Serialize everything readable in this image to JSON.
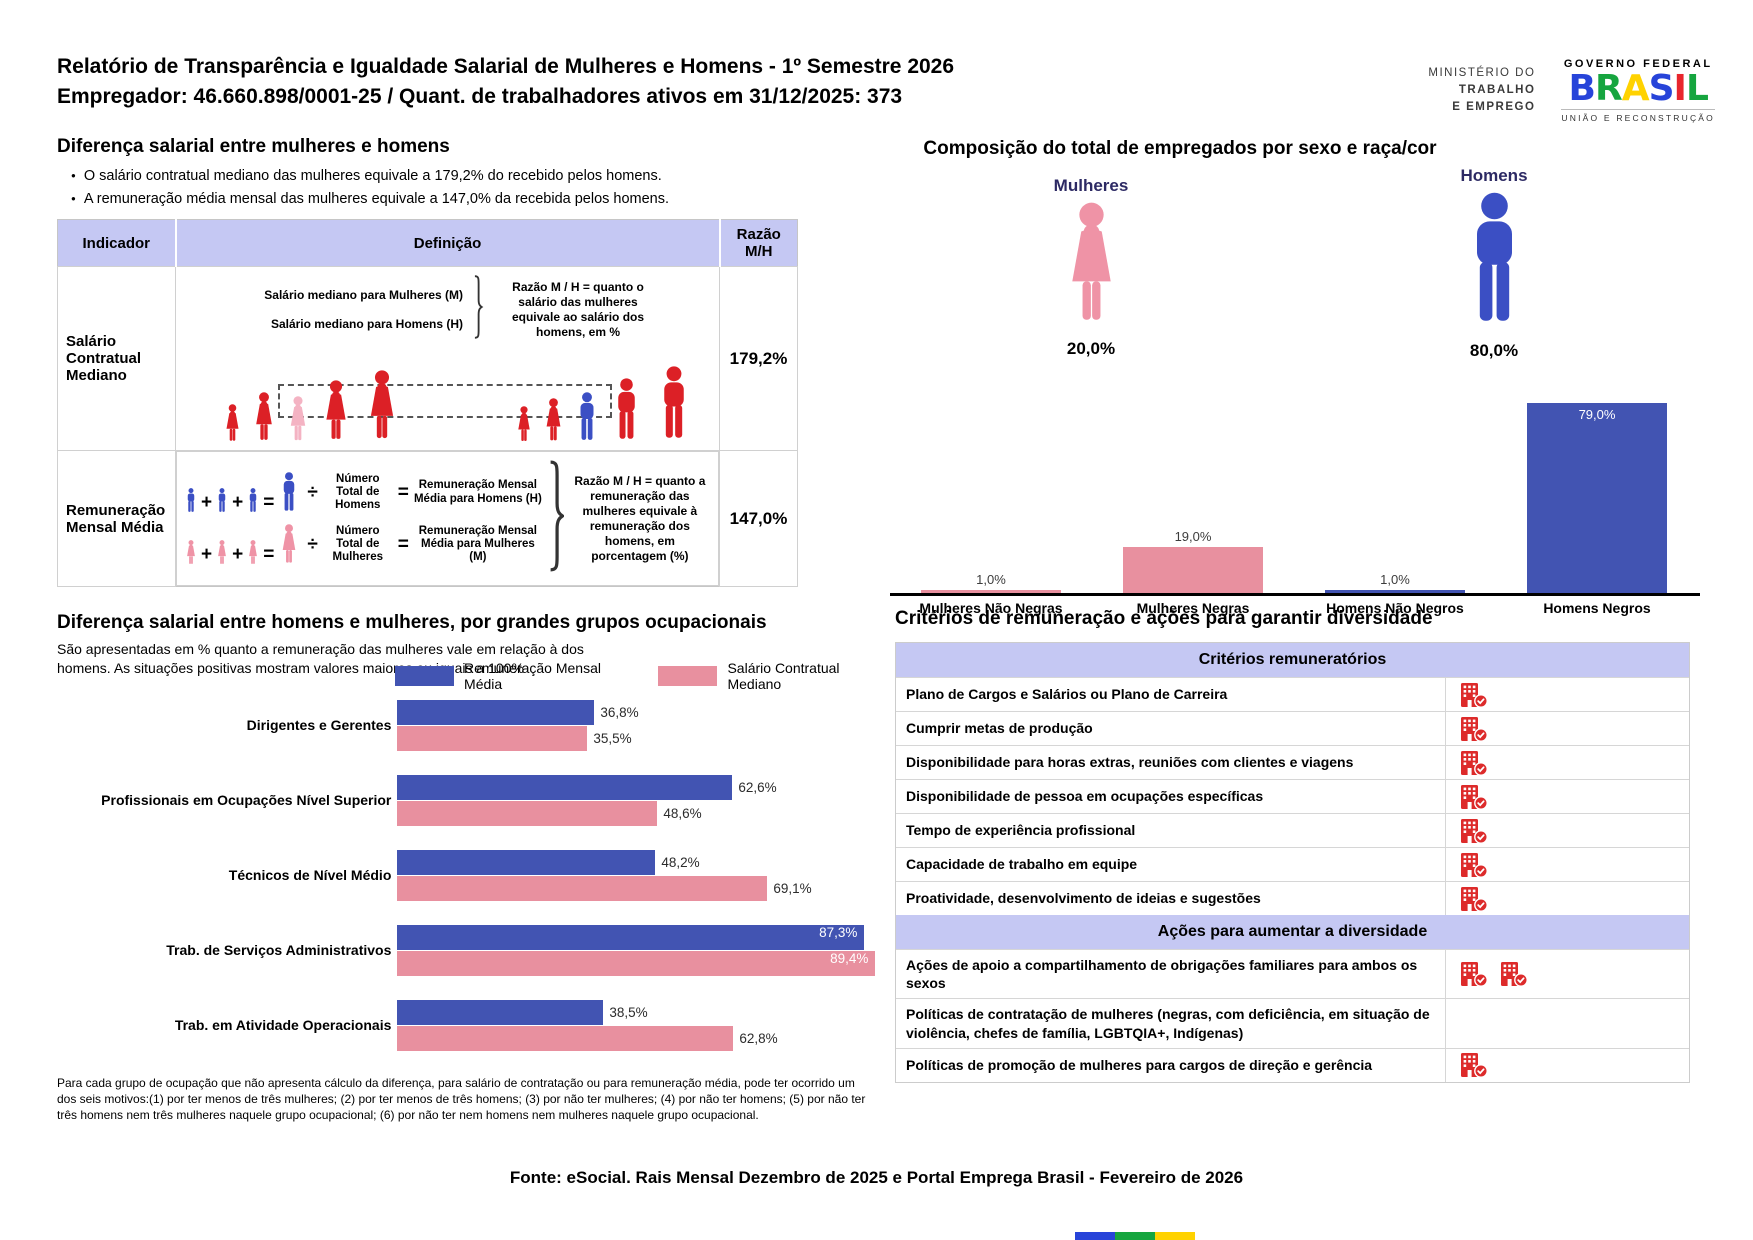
{
  "page": {
    "title_line1": "Relatório de Transparência e Igualdade Salarial de Mulheres e Homens - 1º Semestre 2026",
    "title_line2": "Empregador: 46.660.898/0001-25 / Quant. de trabalhadores ativos em 31/12/2025: 373",
    "footer": "Fonte: eSocial. Rais Mensal Dezembro de 2025 e Portal Emprega Brasil - Fevereiro de 2026"
  },
  "logos": {
    "ministry_line1": "MINISTÉRIO DO",
    "ministry_line2": "TRABALHO",
    "ministry_line3": "E EMPREGO",
    "gov_federal": "GOVERNO FEDERAL",
    "brasil": "BRASIL",
    "uniao": "UNIÃO E RECONSTRUÇÃO"
  },
  "salary_gap": {
    "title": "Diferença salarial entre mulheres e homens",
    "bullet1": "O salário contratual mediano das mulheres equivale a 179,2% do recebido pelos homens.",
    "bullet2": "A remuneração média mensal das mulheres equivale a 147,0% da recebida pelos homens.",
    "col_indicator": "Indicador",
    "col_definition": "Definição",
    "col_ratio": "Razão M/H",
    "row1": {
      "indicator": "Salário Contratual Mediano",
      "label_women": "Salário mediano para Mulheres (M)",
      "label_men": "Salário mediano para Homens (H)",
      "ratio_note": "Razão M / H = quanto o salário das mulheres equivale ao salário dos homens, em %",
      "ratio": "179,2%"
    },
    "row2": {
      "indicator": "Remuneração Mensal Média",
      "men_count_label": "Número Total de Homens",
      "men_result_label": "Remuneração Mensal Média para Homens (H)",
      "women_count_label": "Número Total de Mulheres",
      "women_result_label": "Remuneração Mensal Média para Mulheres (M)",
      "ratio_note": "Razão M / H = quanto a remuneração das mulheres equivale à remuneração dos homens, em porcentagem (%)",
      "ratio": "147,0%"
    },
    "operators": {
      "plus": "+",
      "equals": "=",
      "divide": "÷"
    }
  },
  "composition": {
    "title": "Composição do total de empregados por sexo e raça/cor",
    "women_label": "Mulheres",
    "women_pct": "20,0%",
    "men_label": "Homens",
    "men_pct": "80,0%"
  },
  "occupational": {
    "title": "Diferença salarial entre homens e mulheres, por grandes grupos ocupacionais",
    "subtitle": "São apresentadas em % quanto a remuneração das mulheres vale em relação à dos homens. As situações positivas mostram valores maiores ou iguais a 100%",
    "footnote": "Para cada grupo de ocupação que não apresenta cálculo da diferença, para salário de contratação ou para remuneração média, pode ter ocorrido um dos seis motivos:(1) por ter menos de três mulheres; (2) por ter menos de três homens; (3) por não ter mulheres; (4) por não ter homens; (5) por não ter três homens nem três mulheres naquele grupo ocupacional; (6) por não ter nem homens nem mulheres naquele grupo ocupacional."
  },
  "criteria": {
    "title": "Critérios de remuneração e ações para garantir diversidade",
    "sections": [
      {
        "header": "Critérios remuneratórios",
        "rows": [
          {
            "label": "Plano de Cargos e Salários ou Plano de Carreira",
            "checks": 1
          },
          {
            "label": "Cumprir metas de produção",
            "checks": 1
          },
          {
            "label": "Disponibilidade para horas extras, reuniões com clientes e viagens",
            "checks": 1
          },
          {
            "label": "Disponibilidade de pessoa em ocupações específicas",
            "checks": 1
          },
          {
            "label": "Tempo de experiência profissional",
            "checks": 1
          },
          {
            "label": "Capacidade de trabalho em equipe",
            "checks": 1
          },
          {
            "label": "Proatividade, desenvolvimento de ideias e sugestões",
            "checks": 1
          }
        ]
      },
      {
        "header": "Ações para aumentar a diversidade",
        "rows": [
          {
            "label": "Ações de apoio a compartilhamento de obrigações familiares para ambos os sexos",
            "checks": 2
          },
          {
            "label": "Políticas de contratação de mulheres (negras, com deficiência, em situação de violência, chefes de família, LGBTQIA+, Indígenas)",
            "checks": 0
          },
          {
            "label": "Políticas de promoção de mulheres para cargos de direção e gerência",
            "checks": 1
          }
        ]
      }
    ]
  },
  "chart_data": [
    {
      "type": "bar",
      "title": "Composição do total de empregados por sexo e raça/cor",
      "categories": [
        "Mulheres Não Negras",
        "Mulheres Negras",
        "Homens Não Negros",
        "Homens Negros"
      ],
      "values": [
        1.0,
        19.0,
        1.0,
        79.0
      ],
      "labels": [
        "1,0%",
        "19,0%",
        "1,0%",
        "79,0%"
      ],
      "colors": [
        "#e8909f",
        "#e8909f",
        "#4254b2",
        "#4254b2"
      ],
      "group_summary": {
        "Mulheres": "20,0%",
        "Homens": "80,0%"
      },
      "ylim": [
        0,
        100
      ],
      "grid": false,
      "legend_position": "none"
    },
    {
      "type": "bar",
      "orientation": "horizontal",
      "title": "Diferença salarial entre homens e mulheres, por grandes grupos ocupacionais",
      "categories": [
        "Dirigentes e Gerentes",
        "Profissionais em Ocupações Nível Superior",
        "Técnicos de Nível Médio",
        "Trab. de Serviços Administrativos",
        "Trab. em Atividade Operacionais"
      ],
      "series": [
        {
          "name": "Remuneração Mensal Média",
          "color": "#4254b2",
          "values": [
            36.8,
            62.6,
            48.2,
            87.3,
            38.5
          ],
          "labels": [
            "36,8%",
            "62,6%",
            "48,2%",
            "87,3%",
            "38,5%"
          ]
        },
        {
          "name": "Salário Contratual Mediano",
          "color": "#e8909f",
          "values": [
            35.5,
            48.6,
            69.1,
            89.4,
            62.8
          ],
          "labels": [
            "35,5%",
            "48,6%",
            "69,1%",
            "89,4%",
            "62,8%"
          ]
        }
      ],
      "xlim": [
        0,
        100
      ],
      "legend_position": "top"
    }
  ],
  "colors": {
    "blue": "#4254b2",
    "figure_blue": "#3b4fc4",
    "pink": "#e8909f",
    "figure_pink": "#ef93a6",
    "light_pink": "#f4b3c3",
    "red": "#dc2026",
    "icon_red": "#dd2b2b",
    "lavender": "#c5c8f3",
    "navy_text": "#2d2a64"
  }
}
